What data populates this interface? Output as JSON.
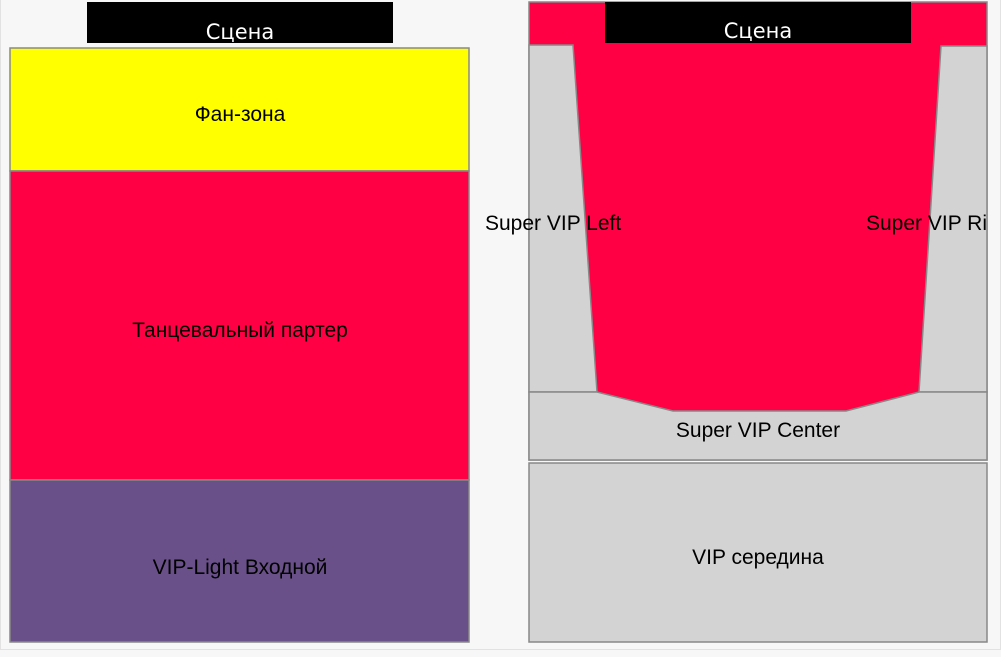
{
  "colors": {
    "fan_zone": "#ffff00",
    "dance_floor": "#ff0044",
    "vip_light": "#6a5089",
    "gray_zone": "#d3d3d3",
    "stage": "#000000",
    "outline": "#888888"
  },
  "left_map": {
    "stage": "Сцена",
    "fan_zone": "Фан-зона",
    "dance_floor": "Танцевальный партер",
    "vip_light": "VIP-Light Входной"
  },
  "right_map": {
    "stage": "Сцена",
    "super_vip_left": "Super VIP Left",
    "super_vip_right": "Super VIP Right",
    "super_vip_center": "Super VIP Center",
    "vip_middle": "VIP середина"
  }
}
